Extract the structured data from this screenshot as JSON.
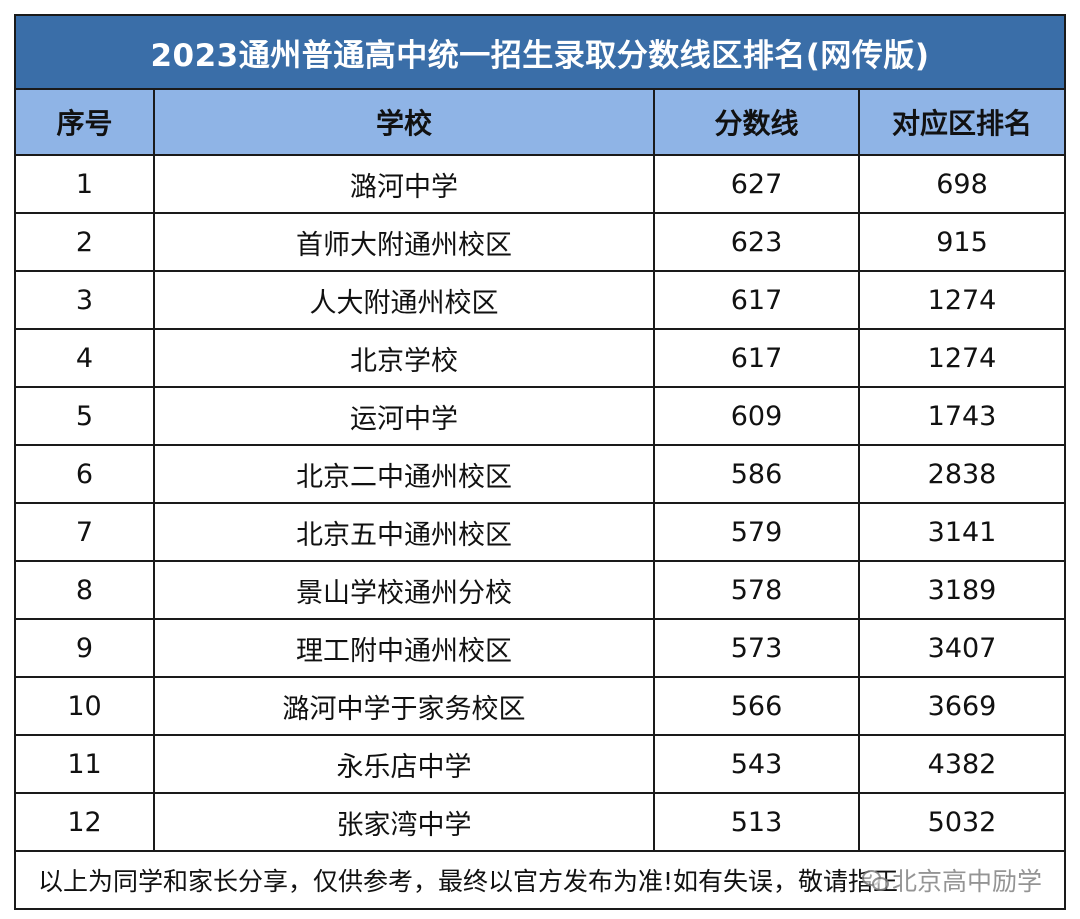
{
  "title": "2023通州普通高中统一招生录取分数线区排名(网传版)",
  "headers": {
    "index": "序号",
    "school": "学校",
    "score": "分数线",
    "rank": "对应区排名"
  },
  "rows": [
    {
      "index": "1",
      "school": "潞河中学",
      "score": "627",
      "rank": "698"
    },
    {
      "index": "2",
      "school": "首师大附通州校区",
      "score": "623",
      "rank": "915"
    },
    {
      "index": "3",
      "school": "人大附通州校区",
      "score": "617",
      "rank": "1274"
    },
    {
      "index": "4",
      "school": "北京学校",
      "score": "617",
      "rank": "1274"
    },
    {
      "index": "5",
      "school": "运河中学",
      "score": "609",
      "rank": "1743"
    },
    {
      "index": "6",
      "school": "北京二中通州校区",
      "score": "586",
      "rank": "2838"
    },
    {
      "index": "7",
      "school": "北京五中通州校区",
      "score": "579",
      "rank": "3141"
    },
    {
      "index": "8",
      "school": "景山学校通州分校",
      "score": "578",
      "rank": "3189"
    },
    {
      "index": "9",
      "school": "理工附中通州校区",
      "score": "573",
      "rank": "3407"
    },
    {
      "index": "10",
      "school": "潞河中学于家务校区",
      "score": "566",
      "rank": "3669"
    },
    {
      "index": "11",
      "school": "永乐店中学",
      "score": "543",
      "rank": "4382"
    },
    {
      "index": "12",
      "school": "张家湾中学",
      "score": "513",
      "rank": "5032"
    }
  ],
  "footer": "以上为同学和家长分享，仅供参考，最终以官方发布为准!如有失误，敬请指正",
  "watermark": {
    "icon": "wechat-icon",
    "text": "北京高中励学"
  }
}
